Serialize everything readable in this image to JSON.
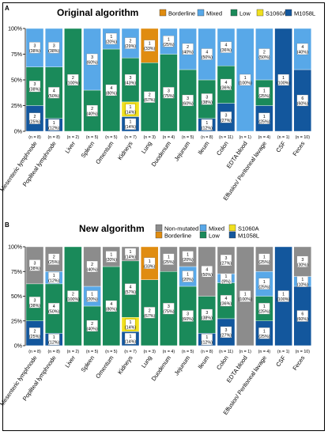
{
  "colors": {
    "Non-mutated": "#8c8c8c",
    "Borderline": "#e08c10",
    "Mixed": "#58a8e8",
    "Low": "#1a8a5a",
    "S1060A": "#f0e020",
    "M1058L": "#13579d"
  },
  "chart_data": [
    {
      "type": "bar",
      "panel_letter": "A",
      "title": "Original algorithm",
      "legend": [
        "Borderline",
        "Mixed",
        "Low",
        "S1060A",
        "M1058L"
      ],
      "yticks": [
        "0%",
        "25%",
        "50%",
        "75%",
        "100%"
      ],
      "ylim": [
        0,
        100
      ],
      "categories": [
        "Mesenteric lymphnode",
        "Popliteal lymphnode",
        "Liver",
        "Spleen",
        "Omentum",
        "Kidneys",
        "Lung",
        "Duodenum",
        "Jejunum",
        "Ileum",
        "Colon",
        "EDTA blood",
        "Effusion/ Peritoneal lavage",
        "CSF",
        "Feces"
      ],
      "n_labels": [
        "(n = 8)",
        "(n = 8)",
        "(n = 2)",
        "(n = 5)",
        "(n = 5)",
        "(n = 7)",
        "(n = 3)",
        "(n = 4)",
        "(n = 5)",
        "(n = 8)",
        "(n = 11)",
        "(n = 1)",
        "(n = 4)",
        "(n = 1)",
        "(n = 10)"
      ],
      "bars": [
        [
          {
            "s": "M1058L",
            "c": 2,
            "p": "25%"
          },
          {
            "s": "Low",
            "c": 3,
            "p": "38%"
          },
          {
            "s": "Mixed",
            "c": 3,
            "p": "38%"
          }
        ],
        [
          {
            "s": "M1058L",
            "c": 1,
            "p": "12%"
          },
          {
            "s": "Low",
            "c": 4,
            "p": "50%"
          },
          {
            "s": "Mixed",
            "c": 3,
            "p": "38%"
          }
        ],
        [
          {
            "s": "Low",
            "c": 2,
            "p": "100%"
          }
        ],
        [
          {
            "s": "Low",
            "c": 2,
            "p": "40%"
          },
          {
            "s": "Mixed",
            "c": 3,
            "p": "60%"
          }
        ],
        [
          {
            "s": "Low",
            "c": 4,
            "p": "80%"
          },
          {
            "s": "Mixed",
            "c": 1,
            "p": "20%"
          }
        ],
        [
          {
            "s": "M1058L",
            "c": 1,
            "p": "14%"
          },
          {
            "s": "S1060A",
            "c": 1,
            "p": "14%"
          },
          {
            "s": "Low",
            "c": 3,
            "p": "43%"
          },
          {
            "s": "Mixed",
            "c": 2,
            "p": "29%"
          }
        ],
        [
          {
            "s": "Low",
            "c": 2,
            "p": "67%"
          },
          {
            "s": "Borderline",
            "c": 1,
            "p": "33%"
          }
        ],
        [
          {
            "s": "Low",
            "c": 3,
            "p": "75%"
          },
          {
            "s": "Mixed",
            "c": 1,
            "p": "25%"
          }
        ],
        [
          {
            "s": "Low",
            "c": 3,
            "p": "60%"
          },
          {
            "s": "Mixed",
            "c": 2,
            "p": "40%"
          }
        ],
        [
          {
            "s": "M1058L",
            "c": 1,
            "p": "12%"
          },
          {
            "s": "Low",
            "c": 3,
            "p": "38%"
          },
          {
            "s": "Mixed",
            "c": 4,
            "p": "50%"
          }
        ],
        [
          {
            "s": "M1058L",
            "c": 3,
            "p": "27%"
          },
          {
            "s": "Low",
            "c": 4,
            "p": "36%"
          },
          {
            "s": "Mixed",
            "c": 4,
            "p": "36%"
          }
        ],
        [
          {
            "s": "Mixed",
            "c": 1,
            "p": "100%"
          }
        ],
        [
          {
            "s": "M1058L",
            "c": 1,
            "p": "25%"
          },
          {
            "s": "Low",
            "c": 1,
            "p": "25%"
          },
          {
            "s": "Mixed",
            "c": 2,
            "p": "50%"
          }
        ],
        [
          {
            "s": "M1058L",
            "c": 1,
            "p": "100%"
          }
        ],
        [
          {
            "s": "M1058L",
            "c": 6,
            "p": "60%"
          },
          {
            "s": "Mixed",
            "c": 4,
            "p": "40%"
          }
        ]
      ]
    },
    {
      "type": "bar",
      "panel_letter": "B",
      "title": "New algorithm",
      "legend": [
        "Non-mutated",
        "Mixed",
        "S1060A",
        "Borderline",
        "Low",
        "M1058L"
      ],
      "yticks": [
        "0%",
        "25%",
        "50%",
        "75%",
        "100%"
      ],
      "ylim": [
        0,
        100
      ],
      "categories": [
        "Mesenteric lymphnode",
        "Popliteal lymphnode",
        "Liver",
        "Spleen",
        "Omentum",
        "Kidneys",
        "Lung",
        "Duodenum",
        "Jejunum",
        "Ileum",
        "Colon",
        "EDTA blood",
        "Effusion/ Peritoneal lavage",
        "CSF",
        "Feces"
      ],
      "n_labels": [
        "(n = 8)",
        "(n = 8)",
        "(n = 2)",
        "(n = 5)",
        "(n = 5)",
        "(n = 7)",
        "(n = 3)",
        "(n = 4)",
        "(n = 5)",
        "(n = 8)",
        "(n = 11)",
        "(n = 1)",
        "(n = 4)",
        "(n = 1)",
        "(n = 10)"
      ],
      "bars": [
        [
          {
            "s": "M1058L",
            "c": 2,
            "p": "25%"
          },
          {
            "s": "Low",
            "c": 3,
            "p": "38%"
          },
          {
            "s": "Non-mutated",
            "c": 3,
            "p": "38%"
          }
        ],
        [
          {
            "s": "M1058L",
            "c": 1,
            "p": "12%"
          },
          {
            "s": "Low",
            "c": 4,
            "p": "50%"
          },
          {
            "s": "Mixed",
            "c": 1,
            "p": "12%"
          },
          {
            "s": "Non-mutated",
            "c": 2,
            "p": "25%"
          }
        ],
        [
          {
            "s": "Low",
            "c": 2,
            "p": "100%"
          }
        ],
        [
          {
            "s": "Low",
            "c": 2,
            "p": "40%"
          },
          {
            "s": "Mixed",
            "c": 1,
            "p": "20%"
          },
          {
            "s": "Non-mutated",
            "c": 2,
            "p": "40%"
          }
        ],
        [
          {
            "s": "Low",
            "c": 4,
            "p": "80%"
          },
          {
            "s": "Non-mutated",
            "c": 1,
            "p": "20%"
          }
        ],
        [
          {
            "s": "M1058L",
            "c": 1,
            "p": "14%"
          },
          {
            "s": "S1060A",
            "c": 1,
            "p": "14%"
          },
          {
            "s": "Low",
            "c": 4,
            "p": "57%"
          },
          {
            "s": "Non-mutated",
            "c": 1,
            "p": "14%"
          }
        ],
        [
          {
            "s": "Low",
            "c": 2,
            "p": "67%"
          },
          {
            "s": "Borderline",
            "c": 1,
            "p": "33%"
          }
        ],
        [
          {
            "s": "Low",
            "c": 3,
            "p": "75%"
          },
          {
            "s": "Non-mutated",
            "c": 1,
            "p": "25%"
          }
        ],
        [
          {
            "s": "Low",
            "c": 3,
            "p": "60%"
          },
          {
            "s": "Mixed",
            "c": 1,
            "p": "20%"
          },
          {
            "s": "Non-mutated",
            "c": 1,
            "p": "20%"
          }
        ],
        [
          {
            "s": "M1058L",
            "c": 1,
            "p": "12%"
          },
          {
            "s": "Low",
            "c": 3,
            "p": "38%"
          },
          {
            "s": "Non-mutated",
            "c": 4,
            "p": "50%"
          }
        ],
        [
          {
            "s": "M1058L",
            "c": 3,
            "p": "27%"
          },
          {
            "s": "Low",
            "c": 4,
            "p": "36%"
          },
          {
            "s": "Mixed",
            "c": 1,
            "p": "9%"
          },
          {
            "s": "Non-mutated",
            "c": 3,
            "p": "27%"
          }
        ],
        [
          {
            "s": "Non-mutated",
            "c": 1,
            "p": "100%"
          }
        ],
        [
          {
            "s": "M1058L",
            "c": 1,
            "p": "25%"
          },
          {
            "s": "Low",
            "c": 1,
            "p": "25%"
          },
          {
            "s": "Mixed",
            "c": 1,
            "p": "25%"
          },
          {
            "s": "Non-mutated",
            "c": 1,
            "p": "25%"
          }
        ],
        [
          {
            "s": "M1058L",
            "c": 1,
            "p": "100%"
          }
        ],
        [
          {
            "s": "M1058L",
            "c": 6,
            "p": "60%"
          },
          {
            "s": "Mixed",
            "c": 1,
            "p": "10%"
          },
          {
            "s": "Non-mutated",
            "c": 3,
            "p": "30%"
          }
        ]
      ]
    }
  ]
}
